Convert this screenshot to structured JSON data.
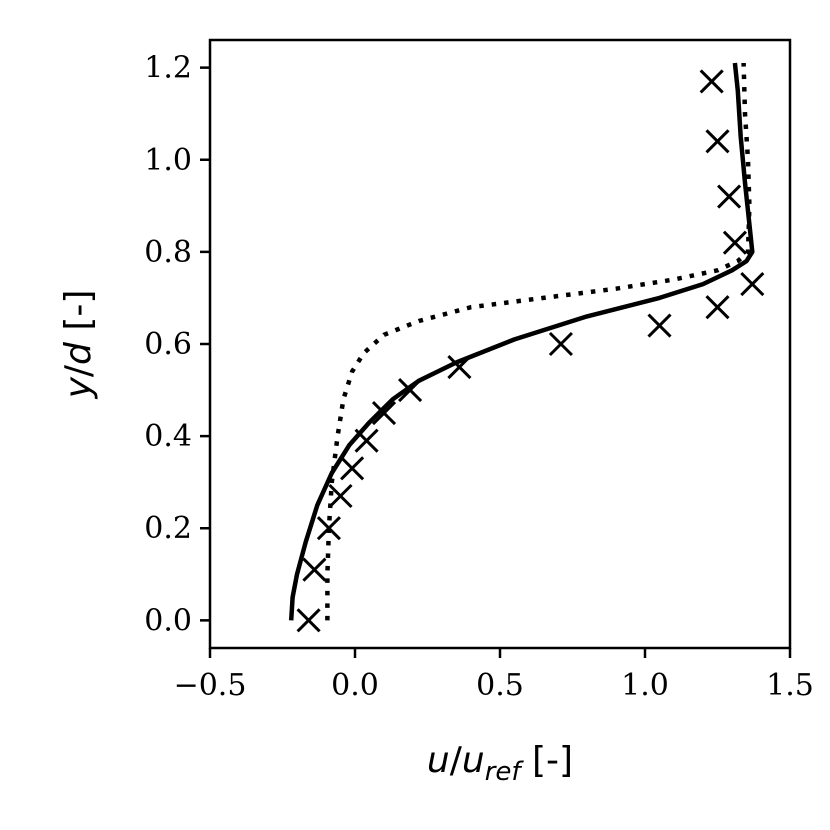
{
  "chart_data": {
    "type": "line",
    "title": "",
    "xlabel": {
      "var": "u",
      "sep": "/",
      "var2": "u",
      "sub": "ref",
      "unit": " [-]"
    },
    "ylabel": {
      "var": "y",
      "sep": "/",
      "var2": "d",
      "unit": " [-]"
    },
    "xlim": [
      -0.5,
      1.5
    ],
    "ylim": [
      -0.06,
      1.26
    ],
    "xticks": [
      -0.5,
      0.0,
      0.5,
      1.0,
      1.5
    ],
    "xtick_labels": [
      "−0.5",
      "0.0",
      "0.5",
      "1.0",
      "1.5"
    ],
    "yticks": [
      0.0,
      0.2,
      0.4,
      0.6,
      0.8,
      1.0,
      1.2
    ],
    "ytick_labels": [
      "0.0",
      "0.2",
      "0.4",
      "0.6",
      "0.8",
      "1.0",
      "1.2"
    ],
    "grid": false,
    "legend": "none",
    "series": [
      {
        "style": "solid",
        "color": "#000000",
        "x": [
          -0.22,
          -0.215,
          -0.2,
          -0.17,
          -0.13,
          -0.08,
          -0.02,
          0.05,
          0.13,
          0.22,
          0.35,
          0.55,
          0.8,
          1.05,
          1.2,
          1.3,
          1.35,
          1.37,
          1.36,
          1.345,
          1.33,
          1.32,
          1.31
        ],
        "y": [
          0.0,
          0.05,
          0.1,
          0.17,
          0.25,
          0.32,
          0.38,
          0.43,
          0.48,
          0.52,
          0.56,
          0.61,
          0.66,
          0.7,
          0.73,
          0.76,
          0.78,
          0.8,
          0.86,
          0.95,
          1.05,
          1.15,
          1.21
        ]
      },
      {
        "style": "dotted",
        "color": "#000000",
        "x": [
          -0.095,
          -0.095,
          -0.09,
          -0.08,
          -0.06,
          -0.04,
          -0.01,
          0.03,
          0.1,
          0.22,
          0.4,
          0.65,
          0.9,
          1.1,
          1.25,
          1.32,
          1.355,
          1.36,
          1.355,
          1.345,
          1.34
        ],
        "y": [
          0.0,
          0.1,
          0.2,
          0.3,
          0.4,
          0.48,
          0.54,
          0.58,
          0.62,
          0.65,
          0.68,
          0.7,
          0.72,
          0.74,
          0.76,
          0.78,
          0.8,
          0.9,
          1.0,
          1.1,
          1.21
        ]
      },
      {
        "style": "marker-x",
        "color": "#000000",
        "x": [
          -0.16,
          -0.14,
          -0.09,
          -0.05,
          -0.01,
          0.04,
          0.1,
          0.19,
          0.36,
          0.71,
          1.05,
          1.25,
          1.37,
          1.31,
          1.29,
          1.25,
          1.23
        ],
        "y": [
          0.0,
          0.11,
          0.2,
          0.27,
          0.33,
          0.39,
          0.45,
          0.5,
          0.55,
          0.6,
          0.64,
          0.68,
          0.73,
          0.82,
          0.92,
          1.04,
          1.17
        ]
      }
    ]
  }
}
